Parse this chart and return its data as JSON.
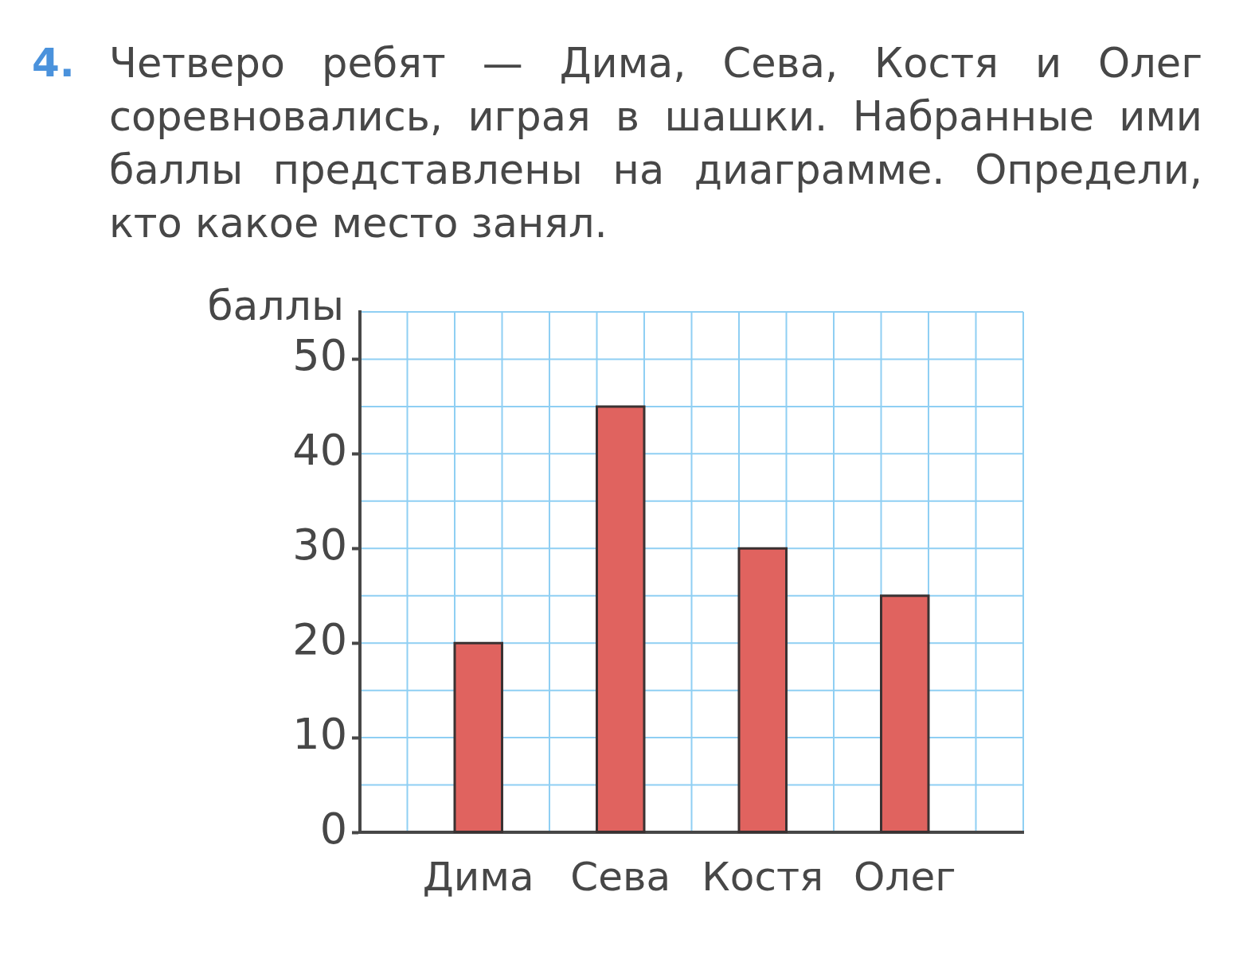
{
  "chart_data": {
    "type": "bar",
    "title": "4. Четверо ребят — Дима, Сева, Костя и Олег соревновались, играя в шашки. Набранные ими баллы представлены на диаграмме. Определи, кто какое место занял.",
    "ylabel": "баллы",
    "categories": [
      "Дима",
      "Сева",
      "Костя",
      "Олег"
    ],
    "values": [
      20,
      45,
      30,
      25
    ],
    "color": "#e0635f",
    "ylim": [
      0,
      55
    ],
    "yticks": [
      0,
      10,
      20,
      30,
      40,
      50
    ],
    "grid": true
  }
}
